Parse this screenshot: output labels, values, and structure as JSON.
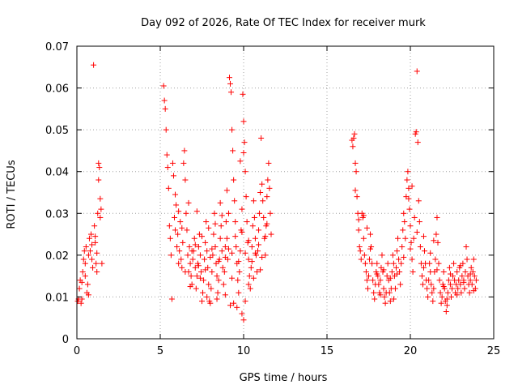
{
  "chart_data": {
    "type": "scatter",
    "title": "Day 092 of 2026, Rate Of TEC Index for receiver murk",
    "xlabel": "GPS time / hours",
    "ylabel": "ROTI / TECUs",
    "xlim": [
      0,
      25
    ],
    "ylim": [
      0,
      0.07
    ],
    "xticks": [
      0,
      5,
      10,
      15,
      20,
      25
    ],
    "yticks": [
      0,
      0.01,
      0.02,
      0.03,
      0.04,
      0.05,
      0.06,
      0.07
    ],
    "xtick_labels": [
      "0",
      "5",
      "10",
      "15",
      "20",
      "25"
    ],
    "ytick_labels": [
      "0",
      "0.01",
      "0.02",
      "0.03",
      "0.04",
      "0.05",
      "0.06",
      "0.07"
    ],
    "grid": true,
    "marker": "plus",
    "series_color": "#ff0000",
    "points": [
      [
        0.05,
        0.009
      ],
      [
        0.1,
        0.0095
      ],
      [
        0.15,
        0.012
      ],
      [
        0.2,
        0.014
      ],
      [
        0.25,
        0.0085
      ],
      [
        0.3,
        0.0095
      ],
      [
        0.35,
        0.016
      ],
      [
        0.4,
        0.019
      ],
      [
        0.45,
        0.021
      ],
      [
        0.5,
        0.018
      ],
      [
        0.55,
        0.022
      ],
      [
        0.6,
        0.011
      ],
      [
        0.65,
        0.013
      ],
      [
        0.7,
        0.02
      ],
      [
        0.75,
        0.024
      ],
      [
        0.8,
        0.021
      ],
      [
        0.85,
        0.025
      ],
      [
        0.9,
        0.019
      ],
      [
        0.95,
        0.017
      ],
      [
        1.0,
        0.0655
      ],
      [
        1.05,
        0.027
      ],
      [
        1.1,
        0.023
      ],
      [
        1.15,
        0.018
      ],
      [
        1.2,
        0.016
      ],
      [
        1.25,
        0.03
      ],
      [
        1.3,
        0.042
      ],
      [
        1.35,
        0.041
      ],
      [
        1.4,
        0.029
      ],
      [
        1.45,
        0.031
      ],
      [
        1.5,
        0.018
      ],
      [
        0.3,
        0.0135
      ],
      [
        0.5,
        0.015
      ],
      [
        0.7,
        0.0105
      ],
      [
        0.9,
        0.0225
      ],
      [
        1.1,
        0.0245
      ],
      [
        1.3,
        0.038
      ],
      [
        1.4,
        0.0335
      ],
      [
        1.2,
        0.0205
      ],
      [
        5.2,
        0.0605
      ],
      [
        5.25,
        0.057
      ],
      [
        5.3,
        0.055
      ],
      [
        5.35,
        0.05
      ],
      [
        5.4,
        0.044
      ],
      [
        5.45,
        0.041
      ],
      [
        5.5,
        0.036
      ],
      [
        5.55,
        0.027
      ],
      [
        5.6,
        0.024
      ],
      [
        5.65,
        0.02
      ],
      [
        5.7,
        0.0095
      ],
      [
        5.75,
        0.042
      ],
      [
        5.8,
        0.039
      ],
      [
        5.85,
        0.029
      ],
      [
        5.9,
        0.026
      ],
      [
        5.95,
        0.032
      ],
      [
        6.0,
        0.022
      ],
      [
        6.05,
        0.025
      ],
      [
        6.1,
        0.018
      ],
      [
        6.15,
        0.021
      ],
      [
        6.2,
        0.028
      ],
      [
        6.25,
        0.019
      ],
      [
        6.3,
        0.017
      ],
      [
        6.35,
        0.023
      ],
      [
        6.4,
        0.042
      ],
      [
        6.45,
        0.045
      ],
      [
        6.5,
        0.038
      ],
      [
        6.55,
        0.03
      ],
      [
        6.6,
        0.026
      ],
      [
        6.65,
        0.02
      ],
      [
        6.7,
        0.016
      ],
      [
        6.75,
        0.022
      ],
      [
        6.8,
        0.018
      ],
      [
        6.85,
        0.015
      ],
      [
        6.9,
        0.013
      ],
      [
        6.95,
        0.019
      ],
      [
        7.0,
        0.021
      ],
      [
        7.05,
        0.024
      ],
      [
        7.1,
        0.017
      ],
      [
        7.15,
        0.012
      ],
      [
        7.2,
        0.015
      ],
      [
        7.25,
        0.018
      ],
      [
        7.3,
        0.022
      ],
      [
        7.35,
        0.025
      ],
      [
        7.4,
        0.02
      ],
      [
        7.45,
        0.016
      ],
      [
        7.5,
        0.009
      ],
      [
        7.55,
        0.011
      ],
      [
        7.6,
        0.014
      ],
      [
        7.65,
        0.019
      ],
      [
        7.7,
        0.023
      ],
      [
        7.75,
        0.028
      ],
      [
        7.8,
        0.021
      ],
      [
        7.85,
        0.017
      ],
      [
        7.9,
        0.013
      ],
      [
        7.95,
        0.009
      ],
      [
        8.0,
        0.0085
      ],
      [
        8.05,
        0.012
      ],
      [
        8.1,
        0.016
      ],
      [
        8.15,
        0.02
      ],
      [
        8.2,
        0.025
      ],
      [
        8.25,
        0.03
      ],
      [
        8.3,
        0.022
      ],
      [
        8.35,
        0.018
      ],
      [
        8.4,
        0.015
      ],
      [
        8.45,
        0.011
      ],
      [
        8.5,
        0.014
      ],
      [
        8.55,
        0.019
      ],
      [
        8.6,
        0.024
      ],
      [
        8.65,
        0.027
      ],
      [
        8.7,
        0.021
      ],
      [
        8.75,
        0.017
      ],
      [
        8.8,
        0.013
      ],
      [
        8.85,
        0.016
      ],
      [
        8.9,
        0.022
      ],
      [
        8.95,
        0.028
      ],
      [
        9.0,
        0.024
      ],
      [
        9.05,
        0.019
      ],
      [
        9.1,
        0.03
      ],
      [
        9.15,
        0.0625
      ],
      [
        9.2,
        0.061
      ],
      [
        9.25,
        0.059
      ],
      [
        9.3,
        0.05
      ],
      [
        9.35,
        0.045
      ],
      [
        9.4,
        0.038
      ],
      [
        9.45,
        0.033
      ],
      [
        9.5,
        0.028
      ],
      [
        9.55,
        0.022
      ],
      [
        9.6,
        0.018
      ],
      [
        9.65,
        0.014
      ],
      [
        9.7,
        0.011
      ],
      [
        9.75,
        0.016
      ],
      [
        9.8,
        0.021
      ],
      [
        9.85,
        0.026
      ],
      [
        9.9,
        0.031
      ],
      [
        9.95,
        0.0585
      ],
      [
        10.0,
        0.052
      ],
      [
        10.05,
        0.047
      ],
      [
        10.1,
        0.04
      ],
      [
        10.15,
        0.034
      ],
      [
        10.2,
        0.028
      ],
      [
        10.25,
        0.023
      ],
      [
        10.3,
        0.019
      ],
      [
        10.35,
        0.015
      ],
      [
        10.4,
        0.012
      ],
      [
        10.45,
        0.017
      ],
      [
        10.5,
        0.022
      ],
      [
        10.55,
        0.027
      ],
      [
        10.6,
        0.033
      ],
      [
        10.65,
        0.029
      ],
      [
        10.7,
        0.024
      ],
      [
        10.75,
        0.02
      ],
      [
        10.8,
        0.016
      ],
      [
        10.85,
        0.021
      ],
      [
        10.9,
        0.026
      ],
      [
        10.95,
        0.03
      ],
      [
        11.0,
        0.035
      ],
      [
        11.05,
        0.048
      ],
      [
        11.1,
        0.037
      ],
      [
        11.15,
        0.033
      ],
      [
        11.2,
        0.029
      ],
      [
        11.25,
        0.024
      ],
      [
        11.3,
        0.02
      ],
      [
        11.35,
        0.027
      ],
      [
        11.4,
        0.034
      ],
      [
        11.45,
        0.038
      ],
      [
        11.5,
        0.042
      ],
      [
        11.55,
        0.036
      ],
      [
        11.6,
        0.03
      ],
      [
        11.65,
        0.025
      ],
      [
        9.9,
        0.006
      ],
      [
        10.0,
        0.0045
      ],
      [
        9.6,
        0.0075
      ],
      [
        8.4,
        0.0095
      ],
      [
        7.8,
        0.01
      ],
      [
        9.2,
        0.008
      ],
      [
        10.1,
        0.009
      ],
      [
        8.9,
        0.0105
      ],
      [
        9.4,
        0.0085
      ],
      [
        10.3,
        0.013
      ],
      [
        6.5,
        0.016
      ],
      [
        6.9,
        0.021
      ],
      [
        7.3,
        0.0175
      ],
      [
        7.7,
        0.0165
      ],
      [
        8.1,
        0.0215
      ],
      [
        8.5,
        0.0185
      ],
      [
        8.9,
        0.0195
      ],
      [
        9.3,
        0.0205
      ],
      [
        9.7,
        0.0185
      ],
      [
        10.1,
        0.0205
      ],
      [
        10.5,
        0.0185
      ],
      [
        10.9,
        0.0225
      ],
      [
        11.3,
        0.0245
      ],
      [
        6.3,
        0.0265
      ],
      [
        6.7,
        0.0325
      ],
      [
        7.1,
        0.0225
      ],
      [
        7.5,
        0.0245
      ],
      [
        7.9,
        0.0265
      ],
      [
        8.3,
        0.0275
      ],
      [
        8.7,
        0.0295
      ],
      [
        9.1,
        0.0215
      ],
      [
        9.5,
        0.0245
      ],
      [
        9.9,
        0.0255
      ],
      [
        10.3,
        0.0235
      ],
      [
        10.7,
        0.0205
      ],
      [
        11.1,
        0.0195
      ],
      [
        5.9,
        0.0345
      ],
      [
        6.1,
        0.0305
      ],
      [
        7.2,
        0.0305
      ],
      [
        8.6,
        0.0325
      ],
      [
        9.8,
        0.0425
      ],
      [
        10.0,
        0.0445
      ],
      [
        9.0,
        0.0355
      ],
      [
        8.0,
        0.0195
      ],
      [
        7.4,
        0.0145
      ],
      [
        6.8,
        0.0125
      ],
      [
        10.6,
        0.0145
      ],
      [
        11.0,
        0.0165
      ],
      [
        11.4,
        0.0275
      ],
      [
        9.3,
        0.0145
      ],
      [
        16.5,
        0.0475
      ],
      [
        16.55,
        0.046
      ],
      [
        16.6,
        0.048
      ],
      [
        16.65,
        0.049
      ],
      [
        16.7,
        0.042
      ],
      [
        16.75,
        0.04
      ],
      [
        16.8,
        0.034
      ],
      [
        16.85,
        0.03
      ],
      [
        16.9,
        0.026
      ],
      [
        16.95,
        0.022
      ],
      [
        17.0,
        0.021
      ],
      [
        17.05,
        0.019
      ],
      [
        17.1,
        0.03
      ],
      [
        17.15,
        0.029
      ],
      [
        17.2,
        0.024
      ],
      [
        17.25,
        0.02
      ],
      [
        17.3,
        0.018
      ],
      [
        17.35,
        0.016
      ],
      [
        17.4,
        0.014
      ],
      [
        17.45,
        0.012
      ],
      [
        17.5,
        0.015
      ],
      [
        17.55,
        0.019
      ],
      [
        17.6,
        0.025
      ],
      [
        17.65,
        0.022
      ],
      [
        17.7,
        0.018
      ],
      [
        17.75,
        0.014
      ],
      [
        17.8,
        0.011
      ],
      [
        17.85,
        0.0095
      ],
      [
        17.9,
        0.013
      ],
      [
        17.95,
        0.016
      ],
      [
        18.0,
        0.018
      ],
      [
        18.05,
        0.015
      ],
      [
        18.1,
        0.013
      ],
      [
        18.15,
        0.011
      ],
      [
        18.2,
        0.014
      ],
      [
        18.25,
        0.017
      ],
      [
        18.3,
        0.02
      ],
      [
        18.35,
        0.016
      ],
      [
        18.4,
        0.012
      ],
      [
        18.45,
        0.01
      ],
      [
        18.5,
        0.0085
      ],
      [
        18.55,
        0.011
      ],
      [
        18.6,
        0.015
      ],
      [
        18.65,
        0.018
      ],
      [
        18.7,
        0.014
      ],
      [
        18.75,
        0.011
      ],
      [
        18.8,
        0.009
      ],
      [
        18.85,
        0.012
      ],
      [
        18.9,
        0.016
      ],
      [
        18.95,
        0.02
      ],
      [
        19.0,
        0.018
      ],
      [
        19.05,
        0.015
      ],
      [
        19.1,
        0.012
      ],
      [
        19.15,
        0.017
      ],
      [
        19.2,
        0.021
      ],
      [
        19.25,
        0.024
      ],
      [
        19.3,
        0.019
      ],
      [
        19.35,
        0.016
      ],
      [
        19.4,
        0.013
      ],
      [
        19.45,
        0.018
      ],
      [
        19.5,
        0.022
      ],
      [
        19.55,
        0.026
      ],
      [
        19.6,
        0.03
      ],
      [
        19.65,
        0.028
      ],
      [
        19.7,
        0.024
      ],
      [
        19.75,
        0.034
      ],
      [
        19.8,
        0.038
      ],
      [
        19.85,
        0.04
      ],
      [
        19.9,
        0.036
      ],
      [
        19.95,
        0.031
      ],
      [
        20.0,
        0.027
      ],
      [
        20.05,
        0.023
      ],
      [
        20.1,
        0.019
      ],
      [
        20.15,
        0.016
      ],
      [
        20.2,
        0.024
      ],
      [
        20.25,
        0.029
      ],
      [
        20.3,
        0.049
      ],
      [
        20.35,
        0.0495
      ],
      [
        20.4,
        0.064
      ],
      [
        20.45,
        0.047
      ],
      [
        20.5,
        0.033
      ],
      [
        20.55,
        0.028
      ],
      [
        20.6,
        0.022
      ],
      [
        20.65,
        0.018
      ],
      [
        20.7,
        0.015
      ],
      [
        20.75,
        0.013
      ],
      [
        20.8,
        0.017
      ],
      [
        20.85,
        0.021
      ],
      [
        20.9,
        0.018
      ],
      [
        20.95,
        0.014
      ],
      [
        21.0,
        0.012
      ],
      [
        21.05,
        0.01
      ],
      [
        21.1,
        0.014
      ],
      [
        21.15,
        0.018
      ],
      [
        21.2,
        0.016
      ],
      [
        21.25,
        0.013
      ],
      [
        21.3,
        0.011
      ],
      [
        21.35,
        0.009
      ],
      [
        21.4,
        0.012
      ],
      [
        21.45,
        0.016
      ],
      [
        21.5,
        0.019
      ],
      [
        21.55,
        0.025
      ],
      [
        21.6,
        0.029
      ],
      [
        21.65,
        0.023
      ],
      [
        21.7,
        0.018
      ],
      [
        21.75,
        0.014
      ],
      [
        21.8,
        0.011
      ],
      [
        21.85,
        0.0085
      ],
      [
        21.9,
        0.01
      ],
      [
        21.95,
        0.013
      ],
      [
        22.0,
        0.016
      ],
      [
        22.05,
        0.012
      ],
      [
        22.1,
        0.009
      ],
      [
        22.15,
        0.0065
      ],
      [
        22.2,
        0.008
      ],
      [
        22.25,
        0.011
      ],
      [
        22.3,
        0.014
      ],
      [
        22.35,
        0.017
      ],
      [
        22.4,
        0.013
      ],
      [
        22.45,
        0.01
      ],
      [
        22.5,
        0.012
      ],
      [
        22.55,
        0.015
      ],
      [
        22.6,
        0.018
      ],
      [
        22.65,
        0.014
      ],
      [
        22.7,
        0.011
      ],
      [
        22.75,
        0.013
      ],
      [
        22.8,
        0.016
      ],
      [
        22.85,
        0.012
      ],
      [
        22.9,
        0.014
      ],
      [
        22.95,
        0.017
      ],
      [
        23.0,
        0.013
      ],
      [
        23.05,
        0.011
      ],
      [
        23.1,
        0.015
      ],
      [
        23.15,
        0.018
      ],
      [
        23.2,
        0.014
      ],
      [
        23.25,
        0.012
      ],
      [
        23.3,
        0.016
      ],
      [
        23.35,
        0.022
      ],
      [
        23.4,
        0.019
      ],
      [
        23.45,
        0.015
      ],
      [
        23.5,
        0.013
      ],
      [
        23.55,
        0.011
      ],
      [
        23.6,
        0.014
      ],
      [
        23.65,
        0.017
      ],
      [
        23.7,
        0.013
      ],
      [
        23.75,
        0.016
      ],
      [
        23.8,
        0.019
      ],
      [
        23.85,
        0.015
      ],
      [
        23.9,
        0.012
      ],
      [
        23.95,
        0.014
      ],
      [
        17.2,
        0.0295
      ],
      [
        17.6,
        0.0215
      ],
      [
        18.0,
        0.0155
      ],
      [
        18.4,
        0.0165
      ],
      [
        18.8,
        0.0145
      ],
      [
        19.2,
        0.0155
      ],
      [
        19.6,
        0.0195
      ],
      [
        20.0,
        0.0215
      ],
      [
        20.4,
        0.0255
      ],
      [
        20.8,
        0.0245
      ],
      [
        21.2,
        0.0205
      ],
      [
        21.6,
        0.0165
      ],
      [
        22.0,
        0.0125
      ],
      [
        22.4,
        0.0155
      ],
      [
        22.8,
        0.0105
      ],
      [
        23.2,
        0.0135
      ],
      [
        23.6,
        0.0155
      ],
      [
        19.9,
        0.0335
      ],
      [
        20.1,
        0.0365
      ],
      [
        17.4,
        0.0265
      ],
      [
        16.7,
        0.0355
      ],
      [
        16.9,
        0.0285
      ],
      [
        18.2,
        0.0105
      ],
      [
        19.0,
        0.0095
      ],
      [
        21.4,
        0.0235
      ],
      [
        22.2,
        0.0095
      ],
      [
        23.0,
        0.0175
      ],
      [
        23.8,
        0.0115
      ]
    ]
  }
}
